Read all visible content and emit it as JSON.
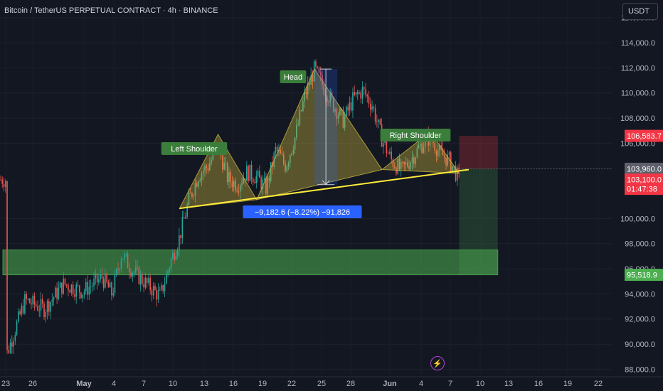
{
  "header": {
    "title": "Bitcoin / TetherUS PERPETUAL CONTRACT · 4h · BINANCE",
    "currency": "USDT",
    "lightning_icon": "lightning-icon"
  },
  "chart_data": {
    "type": "candlestick",
    "ylim": [
      87400,
      117400
    ],
    "y_ticks": [
      {
        "value": 88000,
        "label": "88,000.0"
      },
      {
        "value": 90000,
        "label": "90,000.0"
      },
      {
        "value": 92000,
        "label": "92,000.0"
      },
      {
        "value": 94000,
        "label": "94,000.0"
      },
      {
        "value": 96000,
        "label": "96,000.0"
      },
      {
        "value": 98000,
        "label": "98,000.0"
      },
      {
        "value": 100000,
        "label": "100,000.0"
      },
      {
        "value": 106000,
        "label": "106,000.0"
      },
      {
        "value": 108000,
        "label": "108,000.0"
      },
      {
        "value": 110000,
        "label": "110,000.0"
      },
      {
        "value": 112000,
        "label": "112,000.0"
      },
      {
        "value": 114000,
        "label": "114,000.0"
      },
      {
        "value": 116000,
        "label": "116,000.0"
      }
    ],
    "x_ticks": [
      "23",
      "26",
      "May",
      "4",
      "7",
      "10",
      "13",
      "16",
      "19",
      "22",
      "25",
      "28",
      "Jun",
      "4",
      "7",
      "10",
      "13",
      "16",
      "19",
      "22"
    ],
    "price_labels": [
      {
        "value": 106583.7,
        "label": "106,583.7",
        "color": "#f23645"
      },
      {
        "value": 103960.0,
        "label": "103,960.0",
        "color": "#5d606b"
      },
      {
        "value": 103100.0,
        "label": "103,100.0",
        "sublabel": "01:47:38",
        "color": "#f23645"
      },
      {
        "value": 95518.9,
        "label": "95,518.9",
        "color": "#4caf50"
      }
    ],
    "path": [
      [
        "Apr 20",
        89000
      ],
      [
        "Apr 22",
        93500
      ],
      [
        "Apr 24",
        92800
      ],
      [
        "Apr 26",
        94800
      ],
      [
        "Apr 28",
        94200
      ],
      [
        "Apr 30",
        95300
      ],
      [
        "May 1",
        94000
      ],
      [
        "May 2",
        97200
      ],
      [
        "May 3",
        96000
      ],
      [
        "May 4",
        95200
      ],
      [
        "May 5",
        94500
      ],
      [
        "May 6",
        93800
      ],
      [
        "May 7",
        96400
      ],
      [
        "May 8",
        98500
      ],
      [
        "May 9",
        101500
      ],
      [
        "May 10",
        103500
      ],
      [
        "May 11",
        104200
      ],
      [
        "May 12",
        105800
      ],
      [
        "May 13",
        103200
      ],
      [
        "May 14",
        102700
      ],
      [
        "May 15",
        103700
      ],
      [
        "May 16",
        103300
      ],
      [
        "May 17",
        102400
      ],
      [
        "May 18",
        105500
      ],
      [
        "May 19",
        104200
      ],
      [
        "May 20",
        106500
      ],
      [
        "May 21",
        109800
      ],
      [
        "May 22",
        111900
      ],
      [
        "May 23",
        110400
      ],
      [
        "May 24",
        109000
      ],
      [
        "May 25",
        107800
      ],
      [
        "May 26",
        109500
      ],
      [
        "May 27",
        110200
      ],
      [
        "May 28",
        109000
      ],
      [
        "May 29",
        106300
      ],
      [
        "May 30",
        104600
      ],
      [
        "May 31",
        103800
      ],
      [
        "Jun 1",
        104700
      ],
      [
        "Jun 2",
        105800
      ],
      [
        "Jun 3",
        106500
      ],
      [
        "Jun 4",
        105200
      ],
      [
        "Jun 5",
        104600
      ],
      [
        "Jun 6",
        103100
      ]
    ],
    "annotations": {
      "left_shoulder": {
        "label": "Left Shoulder",
        "points": [
          [
            "May 8",
            100800
          ],
          [
            "May 12",
            106700
          ],
          [
            "May 16",
            101500
          ]
        ]
      },
      "head": {
        "label": "Head",
        "points": [
          [
            "May 16",
            101500
          ],
          [
            "May 22",
            111900
          ],
          [
            "May 29",
            103900
          ]
        ]
      },
      "right_shoulder": {
        "label": "Right Shoulder",
        "points": [
          [
            "May 29",
            103900
          ],
          [
            "Jun 3",
            106900
          ],
          [
            "Jun 6",
            103600
          ]
        ]
      },
      "neckline": {
        "from": [
          "May 8",
          100800
        ],
        "to": [
          "Jun 7",
          103900
        ],
        "color": "#ffeb3b"
      },
      "measure": {
        "label": "−9,182.6 (−8.22%) −91,826",
        "from": [
          "May 22",
          111900
        ],
        "to": [
          "May 22",
          102700
        ]
      },
      "support_zone": {
        "from_x": "Apr 20",
        "to_x": "Jun 10",
        "low": 95518.9,
        "high": 97500,
        "color": "#4caf50"
      },
      "short_position": {
        "from_x": "Jun 6",
        "to_x": "Jun 10",
        "entry": 103960.0,
        "stop": 106583.7,
        "target": 95518.9
      }
    }
  }
}
